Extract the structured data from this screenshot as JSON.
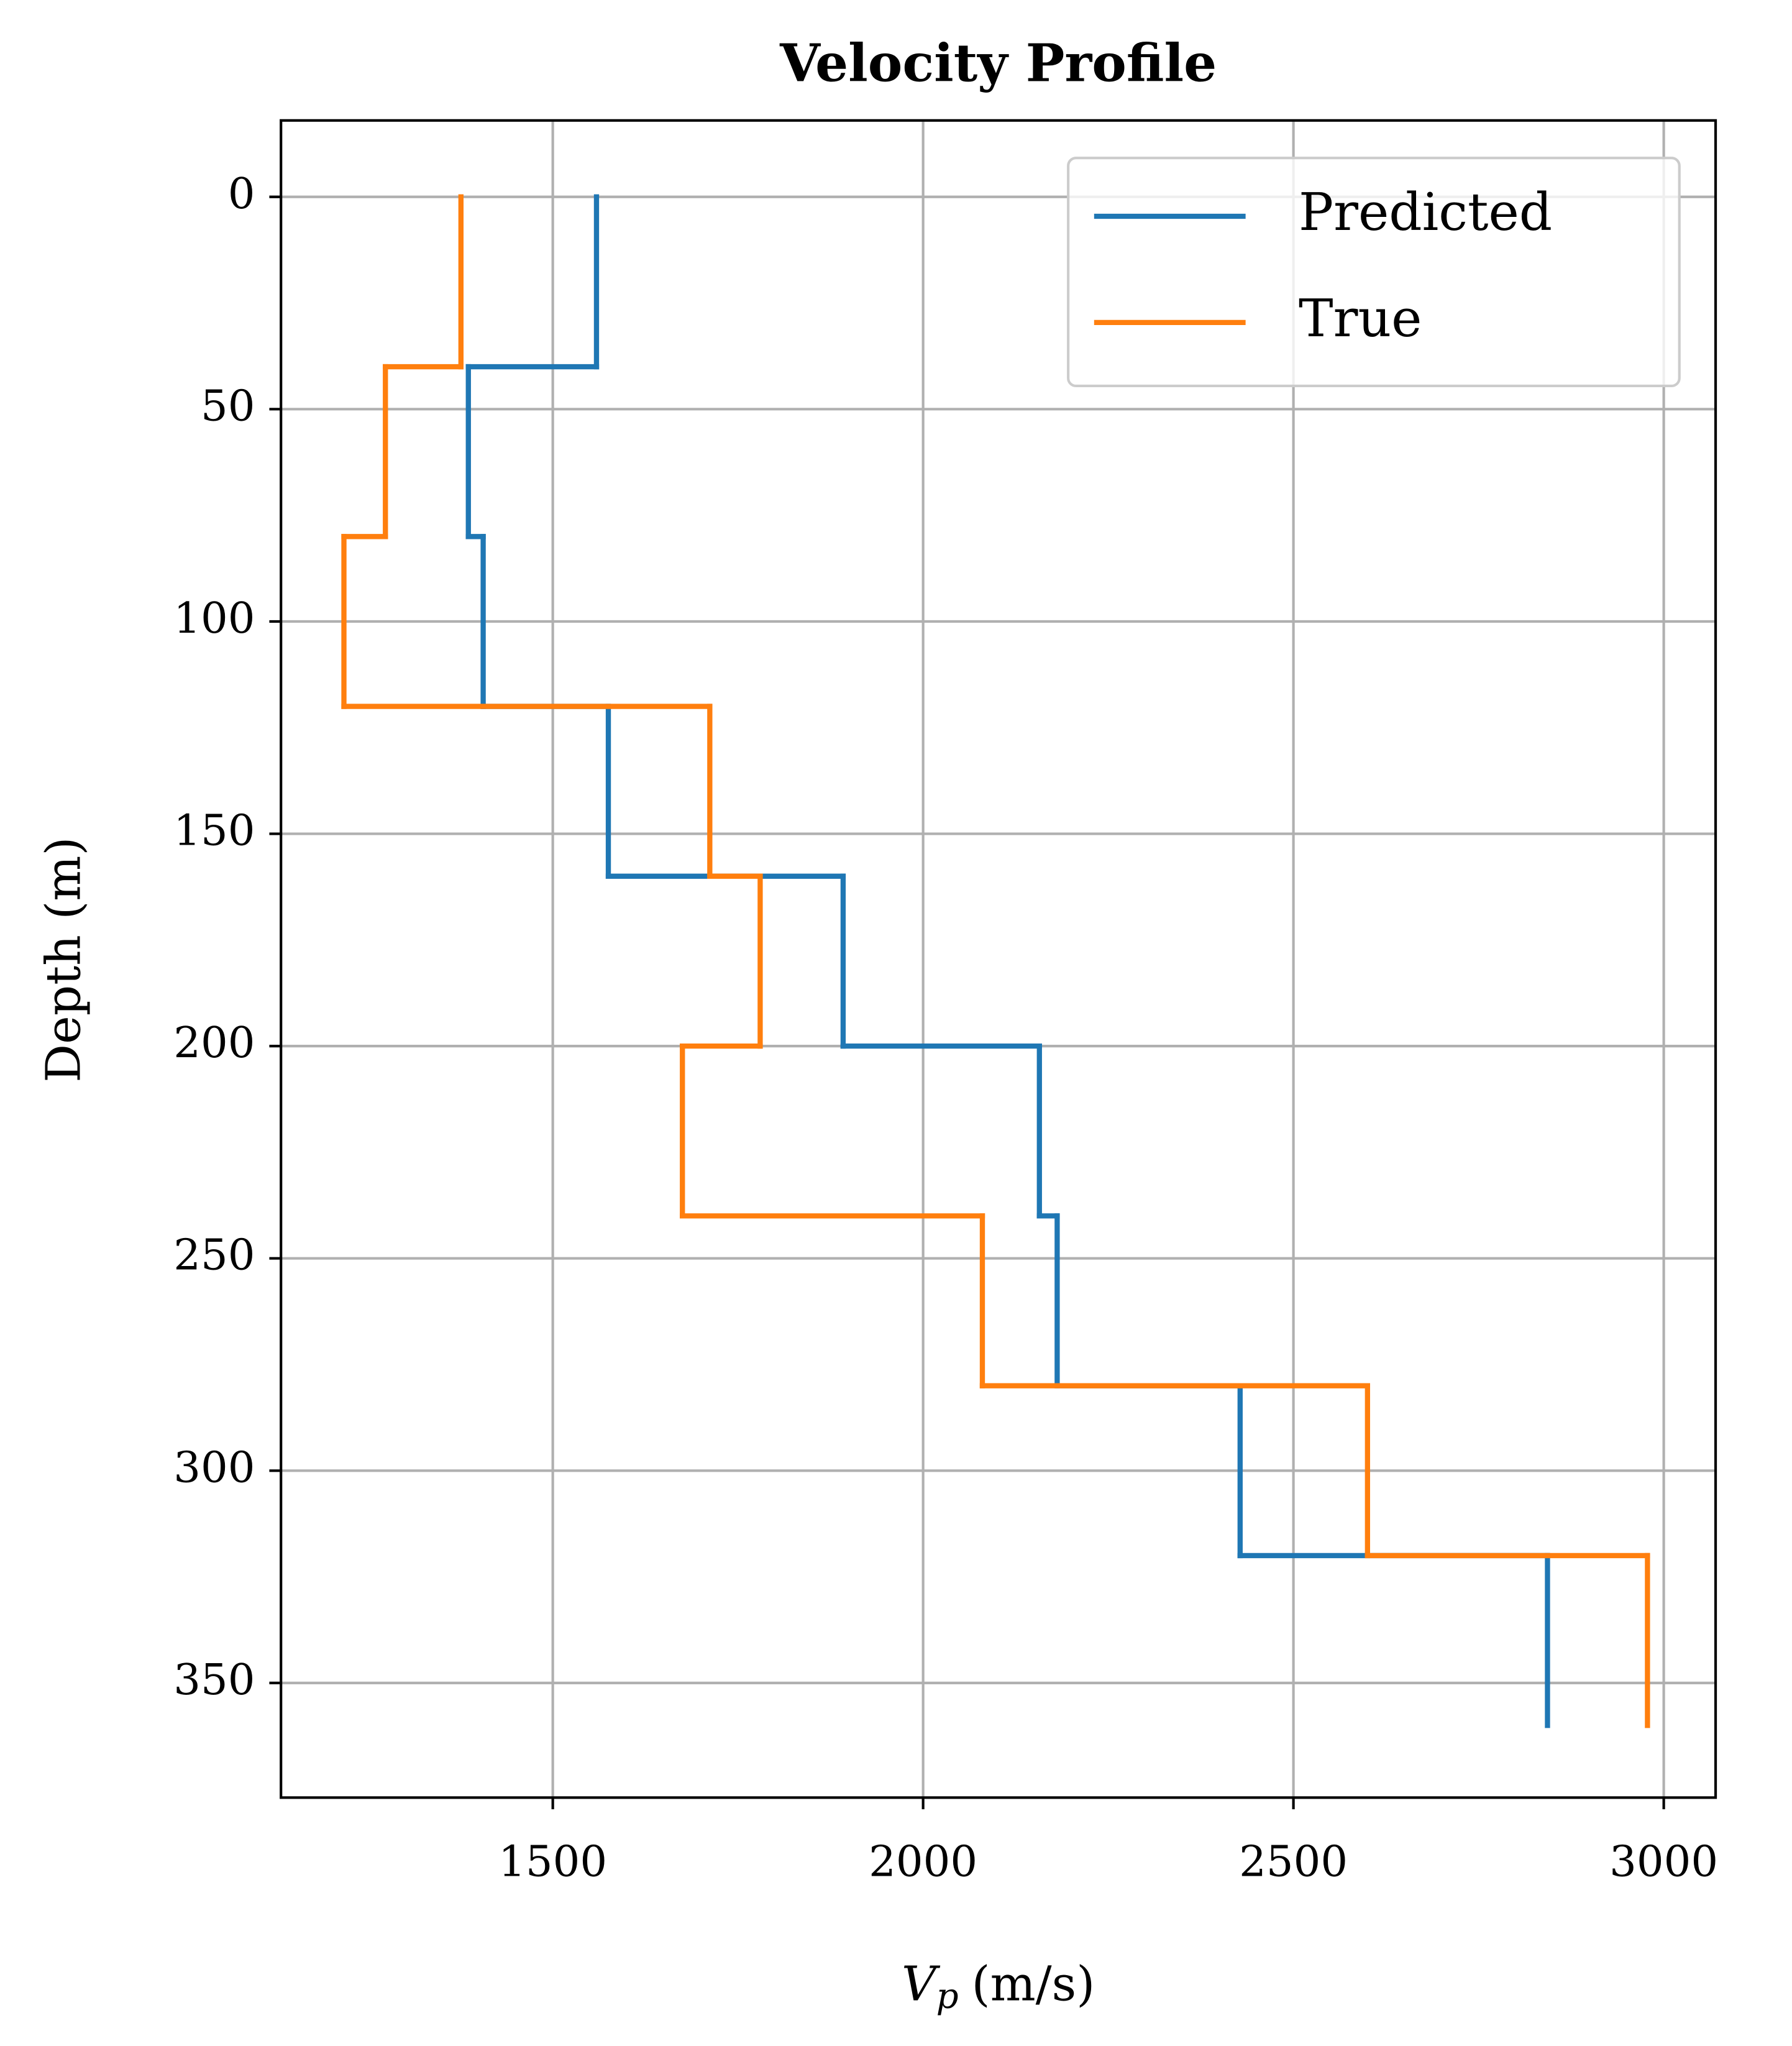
{
  "chart_data": {
    "type": "step-profile",
    "title": "Velocity Profile",
    "xlabel": [
      "V",
      "p",
      "(m/s)"
    ],
    "ylabel": "Depth (m)",
    "depths": [
      0,
      40,
      80,
      120,
      160,
      200,
      240,
      280,
      320,
      360
    ],
    "series": [
      {
        "name": "Predicted",
        "color": "#1f77b4",
        "values": [
          1559,
          1386,
          1406,
          1575,
          1892,
          2157,
          2181,
          2428,
          2843
        ]
      },
      {
        "name": "True",
        "color": "#ff7f0e",
        "values": [
          1376,
          1274,
          1218,
          1712,
          1780,
          1675,
          2080,
          2600,
          2978
        ]
      }
    ],
    "xlim": [
      1133,
      3070
    ],
    "xticks": [
      1500,
      2000,
      2500,
      3000
    ],
    "ylim": [
      -18,
      377
    ],
    "yticks": [
      0,
      50,
      100,
      150,
      200,
      250,
      300,
      350
    ],
    "y_inverted": true,
    "grid": true,
    "legend": "upper right"
  }
}
